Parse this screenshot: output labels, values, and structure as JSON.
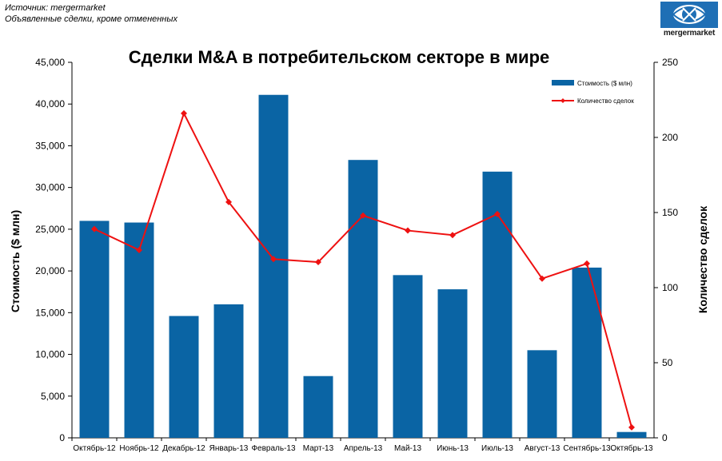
{
  "source_line": "Источник: mergermarket",
  "note_line": "Объявленные сделки, кроме отмененных",
  "logo_text": "mergermarket",
  "chart_data": {
    "type": "bar",
    "title": "Сделки M&A в потребительском секторе в мире",
    "categories": [
      "Октябрь-12",
      "Ноябрь-12",
      "Декабрь-12",
      "Январь-13",
      "Февраль-13",
      "Март-13",
      "Апрель-13",
      "Май-13",
      "Июнь-13",
      "Июль-13",
      "Август-13",
      "Сентябрь-13",
      "Октябрь-13"
    ],
    "series": [
      {
        "name": "Стоимость ($ млн)",
        "type": "bar",
        "axis": "left",
        "color": "#0a64a4",
        "values": [
          26000,
          25800,
          14600,
          16000,
          41100,
          7400,
          33300,
          19500,
          17800,
          31900,
          10500,
          20400,
          700
        ]
      },
      {
        "name": "Количество сделок",
        "type": "line",
        "axis": "right",
        "color": "#ee1111",
        "values": [
          139,
          125,
          216,
          157,
          119,
          117,
          148,
          138,
          135,
          149,
          106,
          116,
          7
        ]
      }
    ],
    "ylabel": "Стоимость ($ млн)",
    "y2label": "Количество сделок",
    "ylim": [
      0,
      45000
    ],
    "y2lim": [
      0,
      250
    ],
    "yticks": [
      "0",
      "5,000",
      "10,000",
      "15,000",
      "20,000",
      "25,000",
      "30,000",
      "35,000",
      "40,000",
      "45,000"
    ],
    "y2ticks": [
      "0",
      "50",
      "100",
      "150",
      "200",
      "250"
    ],
    "legend_position": "top-right",
    "grid": false
  }
}
